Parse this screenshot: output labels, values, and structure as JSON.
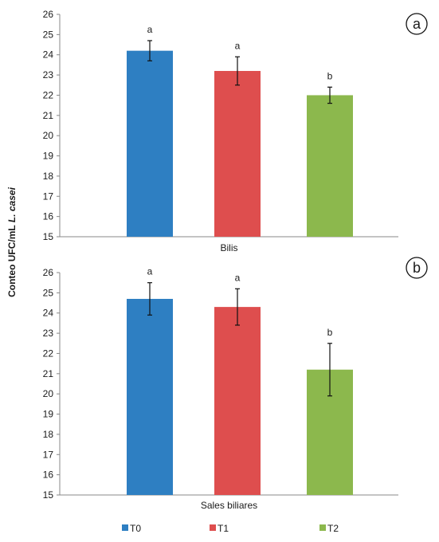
{
  "figure": {
    "ylabel_prefix": "Conteo UFC/mL ",
    "ylabel_italic": "L. casei"
  },
  "legend": [
    {
      "name": "T0",
      "color": "#2e7fc2"
    },
    {
      "name": "T1",
      "color": "#de4e4e"
    },
    {
      "name": "T2",
      "color": "#8cb84d"
    }
  ],
  "chart_data": [
    {
      "type": "bar",
      "panel_label": "a",
      "xlabel": "Bilis",
      "ylim": [
        15,
        26
      ],
      "yticks": [
        15,
        16,
        17,
        18,
        19,
        20,
        21,
        22,
        23,
        24,
        25,
        26
      ],
      "grid": false,
      "legend_position": "bottom",
      "series": [
        {
          "name": "T0",
          "value": 24.2,
          "error": 0.5,
          "letter": "a",
          "color": "#2e7fc2"
        },
        {
          "name": "T1",
          "value": 23.2,
          "error": 0.7,
          "letter": "a",
          "color": "#de4e4e"
        },
        {
          "name": "T2",
          "value": 22.0,
          "error": 0.4,
          "letter": "b",
          "color": "#8cb84d"
        }
      ]
    },
    {
      "type": "bar",
      "panel_label": "b",
      "xlabel": "Sales biliares",
      "ylim": [
        15,
        26
      ],
      "yticks": [
        15,
        16,
        17,
        18,
        19,
        20,
        21,
        22,
        23,
        24,
        25,
        26
      ],
      "grid": false,
      "legend_position": "bottom",
      "series": [
        {
          "name": "T0",
          "value": 24.7,
          "error": 0.8,
          "letter": "a",
          "color": "#2e7fc2"
        },
        {
          "name": "T1",
          "value": 24.3,
          "error": 0.9,
          "letter": "a",
          "color": "#de4e4e"
        },
        {
          "name": "T2",
          "value": 21.2,
          "error": 1.3,
          "letter": "b",
          "color": "#8cb84d"
        }
      ]
    }
  ]
}
